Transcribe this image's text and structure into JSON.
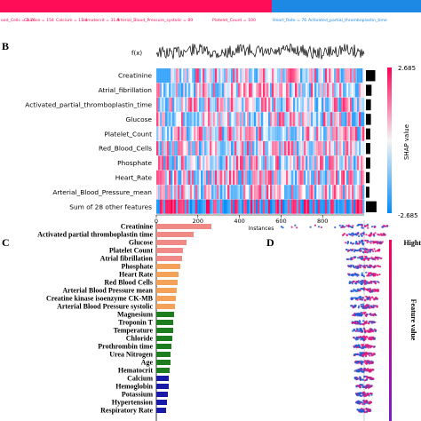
{
  "panels": {
    "a_strip": {
      "features": [
        {
          "name": "ood_Cells",
          "value": "3.76",
          "side": "positive"
        },
        {
          "name": "Glucose",
          "value": "154",
          "side": "positive"
        },
        {
          "name": "Calcium",
          "value": "11.4",
          "side": "positive"
        },
        {
          "name": "Hematocrit",
          "value": "31.4",
          "side": "positive"
        },
        {
          "name": "Arterial_Blood_Pressure_systolic",
          "value": "89",
          "side": "positive"
        },
        {
          "name": "Platelet_Count",
          "value": "100",
          "side": "positive"
        },
        {
          "name": "Heart_Rate",
          "value": "76",
          "side": "negative"
        },
        {
          "name": "Activated_partial_thromboplastin_time",
          "value": "",
          "side": "negative"
        }
      ]
    },
    "b": {
      "label": "B",
      "fx_label": "f(x)",
      "colorbar_max": "2.685",
      "colorbar_min": "-2.685",
      "colorbar_label": "SHAP value",
      "xlabel": "Instances"
    },
    "c": {
      "label": "C"
    },
    "d": {
      "label": "D",
      "colorbar_high": "Hight",
      "colorbar_label": "Feature value"
    }
  },
  "chart_data": [
    {
      "type": "heatmap",
      "panel": "B",
      "rows": [
        "Creatinine",
        "Atrial_fibrillation",
        "Activated_partial_thromboplastin_time",
        "Glucose",
        "Platelet_Count",
        "Red_Blood_Cells",
        "Phosphate",
        "Heart_Rate",
        "Arterial_Blood_Pressure_mean",
        "Sum of 28 other features"
      ],
      "x_ticks": [
        "0",
        "200",
        "400",
        "600",
        "800"
      ],
      "xlim": [
        0,
        1000
      ],
      "color_range": [
        -2.685,
        2.685
      ],
      "importance": [
        0.75,
        0.45,
        0.4,
        0.4,
        0.35,
        0.35,
        0.35,
        0.3,
        0.28,
        0.85
      ]
    },
    {
      "type": "bar",
      "panel": "C",
      "orientation": "horizontal",
      "categories": [
        "Creatinine",
        "Activated partial thromboplastin time",
        "Glucose",
        "Platelet Count",
        "Atrial fibrillation",
        "Phosphate",
        "Heart Rate",
        "Red Blood Cells",
        "Arterial Blood Pressure mean",
        "Creatine kinase isoenzyme CK-MB",
        "Arterial Blood Pressure systolic",
        "Magnesium",
        "Troponin T",
        "Temperature",
        "Chloride",
        "Prothrombin time",
        "Urea Nitrogen",
        "Age",
        "Hematocrit",
        "Calcium",
        "Hemoglobin",
        "Potassium",
        "Hypertension",
        "Respiratory Rate"
      ],
      "values": [
        0.62,
        0.42,
        0.34,
        0.3,
        0.29,
        0.27,
        0.25,
        0.24,
        0.23,
        0.22,
        0.21,
        0.2,
        0.19,
        0.19,
        0.18,
        0.17,
        0.16,
        0.16,
        0.15,
        0.14,
        0.14,
        0.13,
        0.12,
        0.11
      ],
      "colors": [
        "#f08a87",
        "#f08a87",
        "#f08a87",
        "#f08a87",
        "#f08a87",
        "#f4a259",
        "#f4a259",
        "#f4a259",
        "#f4a259",
        "#f4a259",
        "#f4a259",
        "#1e7d1e",
        "#1e7d1e",
        "#1e7d1e",
        "#1e7d1e",
        "#1e7d1e",
        "#1e7d1e",
        "#1e7d1e",
        "#1e7d1e",
        "#1a1aa8",
        "#1a1aa8",
        "#1a1aa8",
        "#1a1aa8",
        "#1a1aa8"
      ]
    },
    {
      "type": "scatter",
      "panel": "D",
      "rows": 24,
      "spread": [
        0.9,
        0.8,
        0.7,
        0.7,
        0.65,
        0.6,
        0.6,
        0.55,
        0.55,
        0.5,
        0.5,
        0.45,
        0.45,
        0.45,
        0.4,
        0.4,
        0.4,
        0.35,
        0.35,
        0.35,
        0.3,
        0.3,
        0.3,
        0.25
      ]
    }
  ]
}
